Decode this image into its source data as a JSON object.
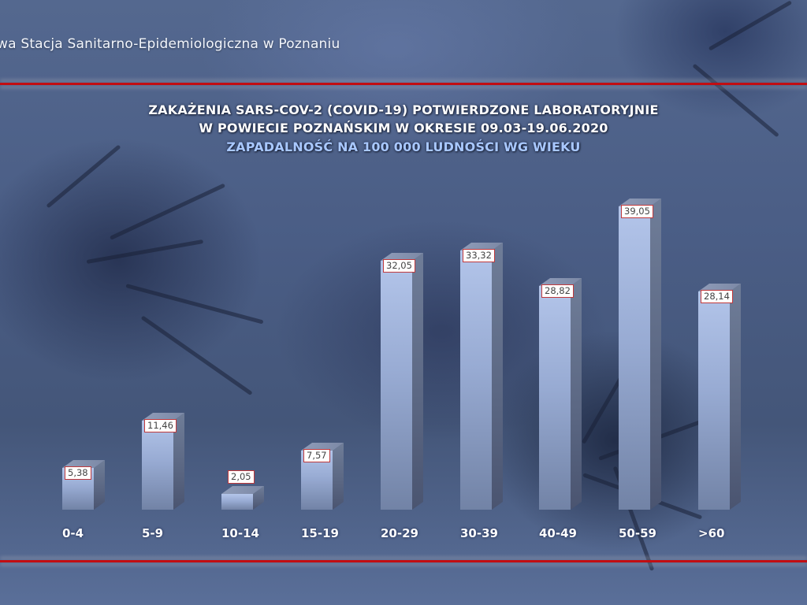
{
  "header": {
    "organization": "wa Stacja Sanitarno-Epidemiologiczna w Poznaniu"
  },
  "chart_data": {
    "type": "bar",
    "title": "ZAKAŻENIA SARS-COV-2 (COVID-19) POTWIERDZONE LABORATORYJNIE",
    "title_line2": "W POWIECIE POZNAŃSKIM W OKRESIE 09.03-19.06.2020",
    "subtitle": "ZAPADALNOŚĆ NA 100 000 LUDNOŚCI WG WIEKU",
    "xlabel": "",
    "ylabel": "",
    "categories": [
      "0-4",
      "5-9",
      "10-14",
      "15-19",
      "20-29",
      "30-39",
      "40-49",
      "50-59",
      ">60"
    ],
    "values": [
      5.38,
      11.46,
      2.05,
      7.57,
      32.05,
      33.32,
      28.82,
      39.05,
      28.14
    ],
    "value_labels": [
      "5,38",
      "11,46",
      "2,05",
      "7,57",
      "32,05",
      "33,32",
      "28,82",
      "39,05",
      "28,14"
    ],
    "ylim": [
      0,
      40
    ],
    "grid": false,
    "legend": "none",
    "style": "3d-columns",
    "colors": {
      "bar_front": "#a5b8e0",
      "bar_side": "#5a6682",
      "label_border": "#c0393c",
      "title": "#ffffff",
      "subtitle": "#a9c8ff",
      "rule": "#c20d12"
    }
  }
}
